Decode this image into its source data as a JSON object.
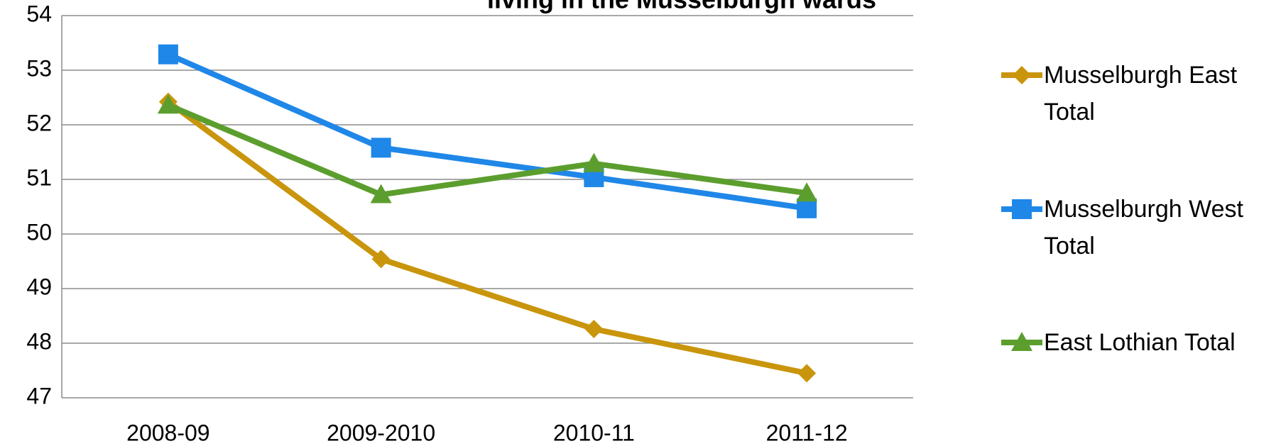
{
  "chart_data": {
    "type": "line",
    "title": "living in the Musselburgh wards",
    "categories": [
      "2008-09",
      "2009-2010",
      "2010-11",
      "2011-12"
    ],
    "series": [
      {
        "name": "Musselburgh East Total",
        "color": "#c9950c",
        "marker": "diamond",
        "values": [
          52.42,
          49.54,
          48.26,
          47.45
        ]
      },
      {
        "name": "Musselburgh West Total",
        "color": "#1f87e8",
        "marker": "square",
        "values": [
          53.29,
          51.58,
          51.04,
          50.47
        ]
      },
      {
        "name": "East Lothian Total",
        "color": "#5c9e2e",
        "marker": "triangle",
        "values": [
          52.36,
          50.72,
          51.29,
          50.75
        ]
      }
    ],
    "ylim": [
      47,
      54
    ],
    "yticks": [
      47,
      48,
      49,
      50,
      51,
      52,
      53,
      54
    ],
    "grid": true,
    "legend": "right"
  }
}
